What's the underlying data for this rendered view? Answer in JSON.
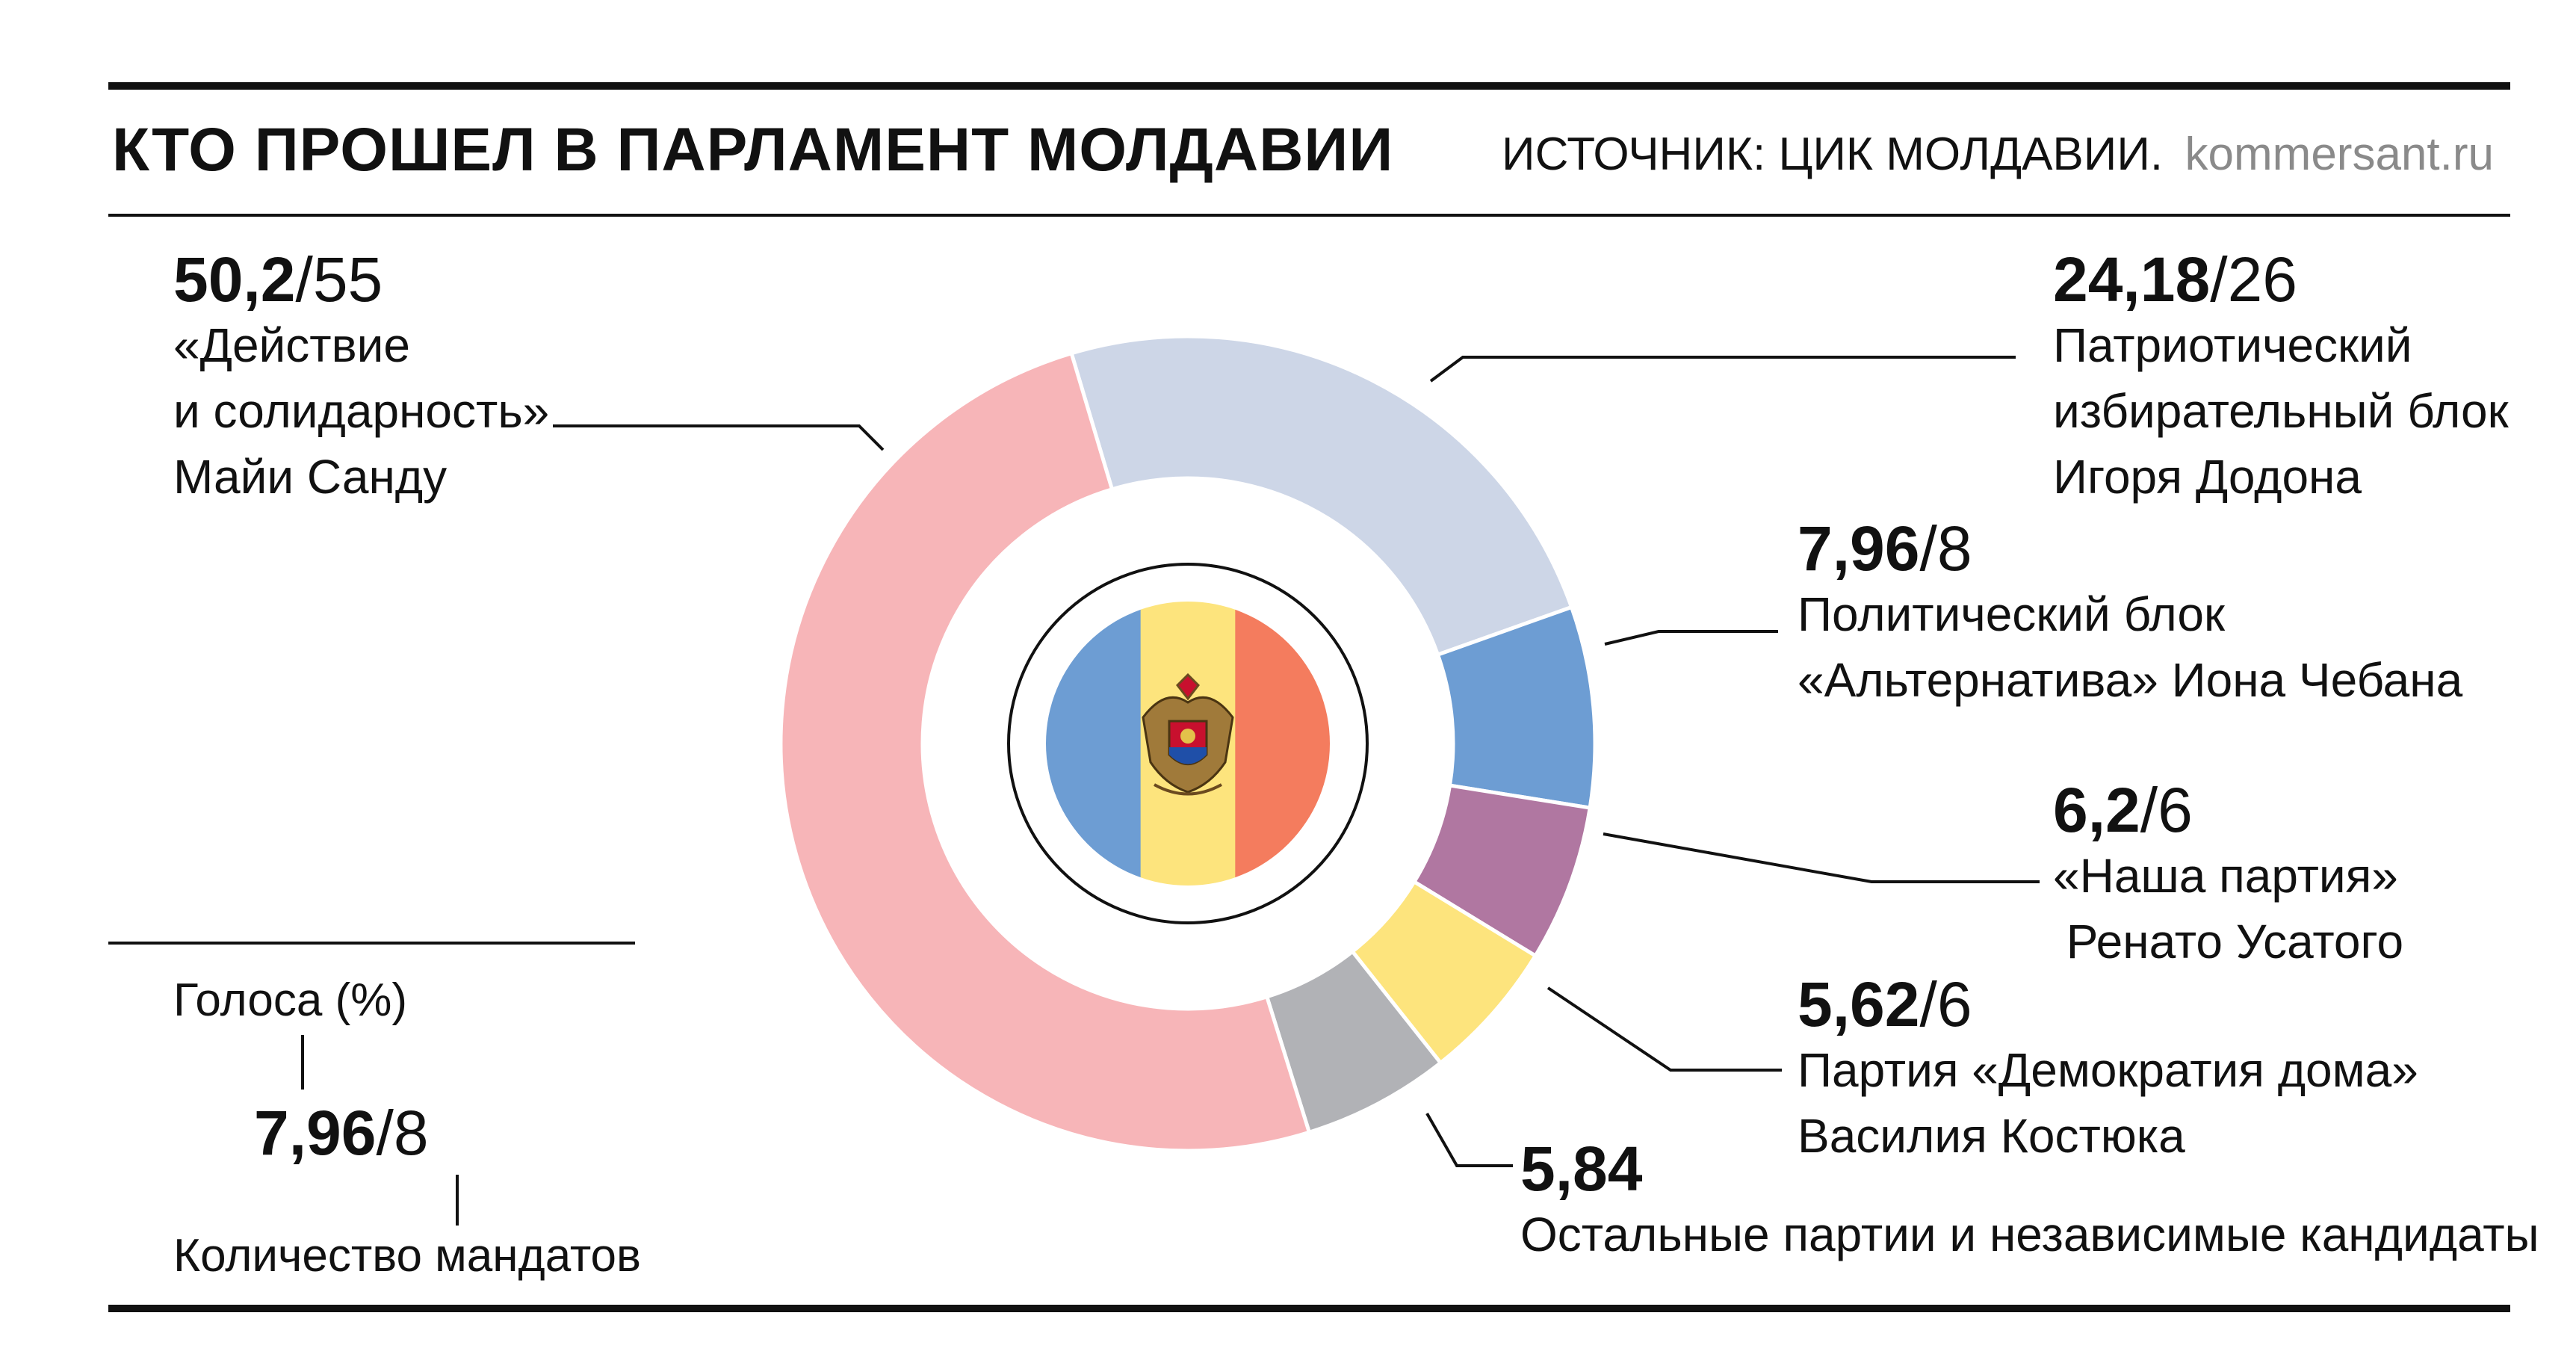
{
  "header": {
    "title": "КТО ПРОШЕЛ В ПАРЛАМЕНТ МОЛДАВИИ",
    "source": "ИСТОЧНИК: ЦИК МОЛДАВИИ.",
    "site": "kommersant.ru"
  },
  "chart_data": {
    "type": "pie",
    "variant": "donut",
    "title": "КТО ПРОШЕЛ В ПАРЛАМЕНТ МОЛДАВИИ",
    "value_unit": "Голоса (%)",
    "secondary_unit": "Количество мандатов",
    "slices": [
      {
        "id": "pas",
        "pct": "50,2",
        "value": 50.2,
        "seats": "55",
        "color": "#f7b5b8",
        "lines": [
          "«Действие",
          "и солидарность»",
          "Майи Санду"
        ]
      },
      {
        "id": "bep",
        "pct": "24,18",
        "value": 24.18,
        "seats": "26",
        "color": "#cdd6e7",
        "lines": [
          "Патриотический",
          "избирательный блок",
          "Игоря Додона"
        ]
      },
      {
        "id": "alt",
        "pct": "7,96",
        "value": 7.96,
        "seats": "8",
        "color": "#6d9dd3",
        "lines": [
          "Политический блок",
          "«Альтернатива» Иона Чебана"
        ]
      },
      {
        "id": "np",
        "pct": "6,2",
        "value": 6.2,
        "seats": "6",
        "color": "#b077a1",
        "lines": [
          "«Наша партия»",
          " Ренато Усатого"
        ]
      },
      {
        "id": "dd",
        "pct": "5,62",
        "value": 5.62,
        "seats": "6",
        "color": "#fde47d",
        "lines": [
          "Партия «Демократия дома»",
          "Василия Костюка"
        ]
      },
      {
        "id": "other",
        "pct": "5,84",
        "value": 5.84,
        "seats": "",
        "color": "#b1b2b6",
        "lines": [
          "Остальные партии и независимые кандидаты"
        ]
      }
    ],
    "center_flag": {
      "colors": [
        "#6d9dd3",
        "#fde47d",
        "#f47c5e"
      ]
    },
    "legend": {
      "votes_label": "Голоса (%)",
      "pct": "7,96",
      "seats": "8",
      "seats_label": "Количество мандатов"
    }
  }
}
